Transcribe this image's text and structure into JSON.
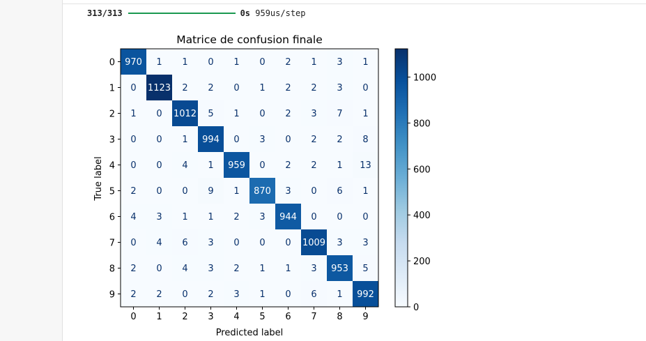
{
  "progress": {
    "steps_label": "313/313",
    "fraction": 1.0,
    "elapsed": "0s",
    "rate": " 959us/step"
  },
  "chart_data": {
    "type": "heatmap",
    "title": "Matrice de confusion finale",
    "xlabel": "Predicted label",
    "ylabel": "True label",
    "x_categories": [
      "0",
      "1",
      "2",
      "3",
      "4",
      "5",
      "6",
      "7",
      "8",
      "9"
    ],
    "y_categories": [
      "0",
      "1",
      "2",
      "3",
      "4",
      "5",
      "6",
      "7",
      "8",
      "9"
    ],
    "values": [
      [
        970,
        1,
        1,
        0,
        1,
        0,
        2,
        1,
        3,
        1
      ],
      [
        0,
        1123,
        2,
        2,
        0,
        1,
        2,
        2,
        3,
        0
      ],
      [
        1,
        0,
        1012,
        5,
        1,
        0,
        2,
        3,
        7,
        1
      ],
      [
        0,
        0,
        1,
        994,
        0,
        3,
        0,
        2,
        2,
        8
      ],
      [
        0,
        0,
        4,
        1,
        959,
        0,
        2,
        2,
        1,
        13
      ],
      [
        2,
        0,
        0,
        9,
        1,
        870,
        3,
        0,
        6,
        1
      ],
      [
        4,
        3,
        1,
        1,
        2,
        3,
        944,
        0,
        0,
        0
      ],
      [
        0,
        4,
        6,
        3,
        0,
        0,
        0,
        1009,
        3,
        3
      ],
      [
        2,
        0,
        4,
        3,
        2,
        1,
        1,
        3,
        953,
        5
      ],
      [
        2,
        2,
        0,
        2,
        3,
        1,
        0,
        6,
        1,
        992
      ]
    ],
    "colormap": "Blues",
    "colorbar": {
      "range": [
        0,
        1123
      ],
      "ticks": [
        "0",
        "200",
        "400",
        "600",
        "800",
        "1000"
      ],
      "tick_values": [
        0,
        200,
        400,
        600,
        800,
        1000
      ]
    },
    "grid": false,
    "colors": {
      "low": "#f7fbff",
      "high": "#08306b",
      "text_dark_bg": "#ffffff",
      "text_light_bg": "#08306b"
    }
  }
}
